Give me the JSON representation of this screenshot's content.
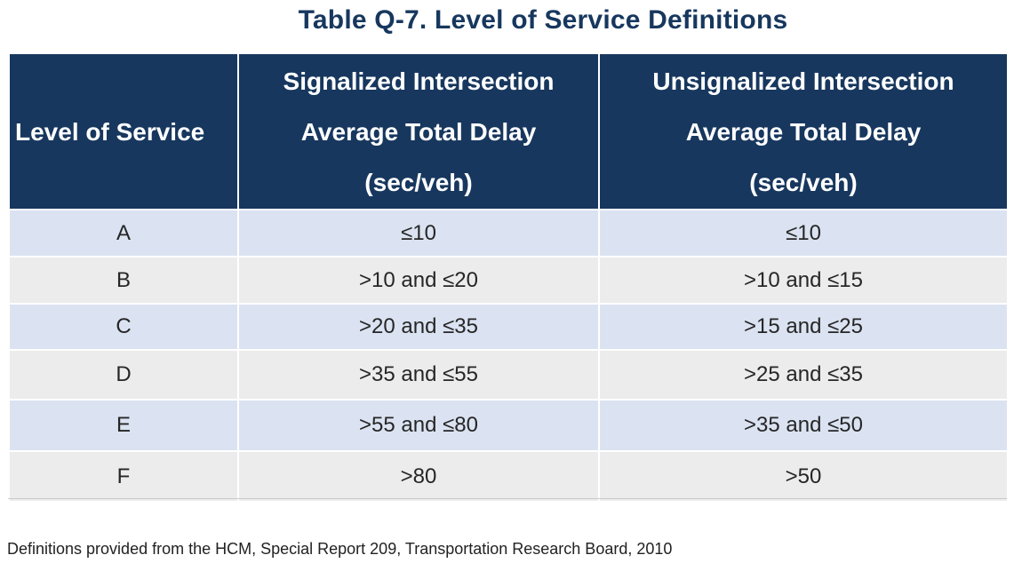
{
  "title": "Table Q-7. Level of Service Definitions",
  "table": {
    "headers": {
      "los": "Level of Service",
      "signalized": [
        "Signalized Intersection",
        "Average Total Delay",
        "(sec/veh)"
      ],
      "unsignalized": [
        "Unsignalized Intersection",
        "Average Total Delay",
        "(sec/veh)"
      ]
    },
    "rows": [
      {
        "los": "A",
        "signalized": "≤10",
        "unsignalized": "≤10"
      },
      {
        "los": "B",
        "signalized": ">10 and ≤20",
        "unsignalized": ">10 and ≤15"
      },
      {
        "los": "C",
        "signalized": ">20 and ≤35",
        "unsignalized": ">15 and ≤25"
      },
      {
        "los": "D",
        "signalized": ">35 and ≤55",
        "unsignalized": ">25 and ≤35"
      },
      {
        "los": "E",
        "signalized": ">55 and ≤80",
        "unsignalized": ">35 and ≤50"
      },
      {
        "los": "F",
        "signalized": ">80",
        "unsignalized": ">50"
      }
    ]
  },
  "footnote": "Definitions provided from the HCM, Special Report 209, Transportation Research Board, 2010",
  "colors": {
    "header_bg": "#17375e",
    "title_text": "#17375e",
    "row_odd_bg": "#dbe3f2",
    "row_even_bg": "#ececec"
  }
}
